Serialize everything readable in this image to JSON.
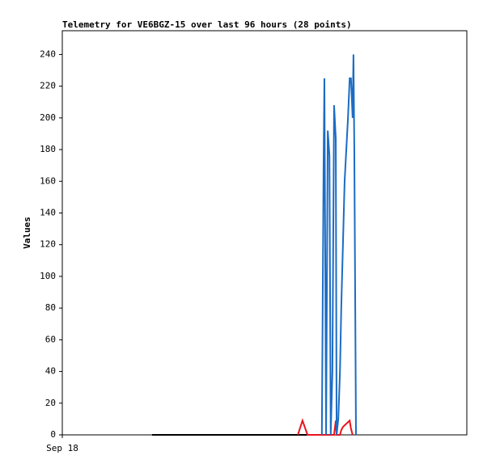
{
  "chart_data": {
    "type": "line",
    "title": "Telemetry for VE6BGZ-15 over last 96 hours (28 points)",
    "y_label": "Values",
    "x": [
      21.3,
      55.9,
      57.0,
      58.2,
      61.6,
      62.0,
      62.2,
      62.6,
      63.0,
      63.4,
      63.7,
      64.1,
      64.5,
      64.9,
      65.1,
      65.5,
      65.9,
      66.2,
      66.6,
      67.0,
      67.4,
      67.8,
      68.2,
      68.5,
      68.9,
      69.1,
      69.3,
      69.7
    ],
    "series": [
      {
        "color": "#000000",
        "values": [
          0,
          0,
          0,
          0,
          0,
          0,
          null,
          null,
          null,
          null,
          null,
          null,
          null,
          null,
          null,
          null,
          null,
          null,
          null,
          null,
          null,
          null,
          null,
          null,
          null,
          null,
          null,
          null
        ]
      },
      {
        "color": "#e8141c",
        "values": [
          null,
          0,
          9,
          0,
          0,
          0,
          0,
          0,
          0,
          0,
          0,
          0,
          0,
          9,
          0,
          0,
          0,
          3,
          5,
          6,
          7,
          8,
          9,
          4,
          0,
          null,
          null,
          null
        ]
      },
      {
        "color": "#1c6cc4",
        "values": [
          null,
          null,
          null,
          null,
          0,
          168,
          225,
          0,
          192,
          176,
          0,
          40,
          208,
          187,
          0,
          10,
          40,
          80,
          120,
          160,
          180,
          200,
          225,
          225,
          200,
          240,
          180,
          0
        ]
      }
    ],
    "xlim": [
      0,
      96
    ],
    "xticks": [
      {
        "value": 0,
        "label": "Sep 18"
      }
    ],
    "ylim": [
      0,
      255
    ],
    "yticks": [
      0,
      20,
      40,
      60,
      80,
      100,
      120,
      140,
      160,
      180,
      200,
      220,
      240
    ]
  }
}
